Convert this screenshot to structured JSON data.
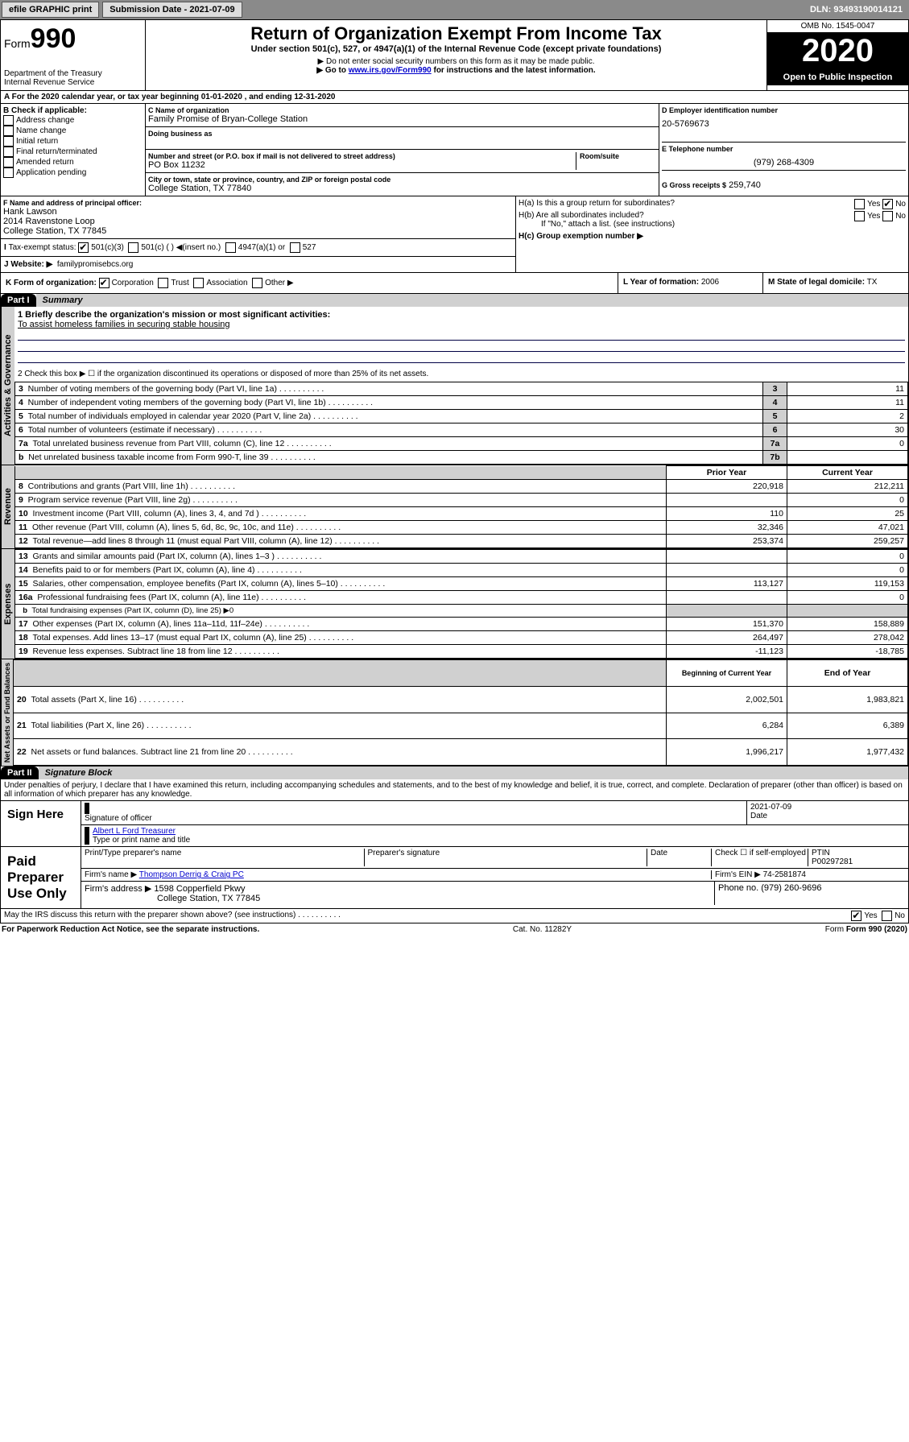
{
  "toolbar": {
    "efile_label": "efile GRAPHIC print",
    "submission_prefix": "Submission Date -",
    "submission_date": "2021-07-09",
    "dln_prefix": "DLN:",
    "dln": "93493190014121"
  },
  "header": {
    "form_prefix": "Form",
    "form_num": "990",
    "dept": "Department of the Treasury",
    "irs": "Internal Revenue Service",
    "title": "Return of Organization Exempt From Income Tax",
    "sub1": "Under section 501(c), 527, or 4947(a)(1) of the Internal Revenue Code (except private foundations)",
    "sub2": "▶ Do not enter social security numbers on this form as it may be made public.",
    "sub3_prefix": "▶ Go to ",
    "sub3_link": "www.irs.gov/Form990",
    "sub3_suffix": " for instructions and the latest information.",
    "omb_label": "OMB No. 1545-0047",
    "year": "2020",
    "open_pub": "Open to Public Inspection"
  },
  "period": "For the 2020 calendar year, or tax year beginning 01-01-2020    , and ending 12-31-2020",
  "boxB": {
    "label": "B Check if applicable:",
    "opts": [
      "Address change",
      "Name change",
      "Initial return",
      "Final return/terminated",
      "Amended return",
      "Application pending"
    ]
  },
  "boxC": {
    "name_label": "C Name of organization",
    "name": "Family Promise of Bryan-College Station",
    "dba_label": "Doing business as",
    "addr_label": "Number and street (or P.O. box if mail is not delivered to street address)",
    "room_label": "Room/suite",
    "addr": "PO Box 11232",
    "city_label": "City or town, state or province, country, and ZIP or foreign postal code",
    "city": "College Station, TX  77840"
  },
  "boxD": {
    "label": "D Employer identification number",
    "ein": "20-5769673"
  },
  "boxE": {
    "label": "E Telephone number",
    "phone": "(979) 268-4309"
  },
  "boxG": {
    "label": "G Gross receipts $",
    "amount": "259,740"
  },
  "boxF": {
    "label": "F  Name and address of principal officer:",
    "name": "Hank Lawson",
    "addr1": "2014 Ravenstone Loop",
    "addr2": "College Station, TX  77845"
  },
  "boxH": {
    "a_label": "H(a)  Is this a group return for subordinates?",
    "b_label": "H(b)  Are all subordinates included?",
    "b_note": "If \"No,\" attach a list. (see instructions)",
    "c_label": "H(c)  Group exemption number ▶",
    "yes": "Yes",
    "no": "No"
  },
  "taxexempt": {
    "label": "Tax-exempt status:",
    "c3": "501(c)(3)",
    "c": "501(c) (  ) ◀(insert no.)",
    "a1": "4947(a)(1) or",
    "527": "527"
  },
  "boxJ": {
    "label": "J  Website: ▶",
    "url": "familypromisebcs.org"
  },
  "boxK": {
    "label": "K Form of organization:",
    "corp": "Corporation",
    "trust": "Trust",
    "assoc": "Association",
    "other": "Other ▶"
  },
  "boxL": {
    "label": "L Year of formation:",
    "val": "2006"
  },
  "boxM": {
    "label": "M State of legal domicile:",
    "val": "TX"
  },
  "part1": {
    "num": "Part I",
    "title": "Summary"
  },
  "summary": {
    "q1_label": "1  Briefly describe the organization's mission or most significant activities:",
    "q1_val": "To assist homeless families in securing stable housing",
    "q2": "2    Check this box ▶ ☐  if the organization discontinued its operations or disposed of more than 25% of its net assets.",
    "lines_gov": [
      {
        "n": "3",
        "t": "Number of voting members of the governing body (Part VI, line 1a)",
        "box": "3",
        "v": "11"
      },
      {
        "n": "4",
        "t": "Number of independent voting members of the governing body (Part VI, line 1b)",
        "box": "4",
        "v": "11"
      },
      {
        "n": "5",
        "t": "Total number of individuals employed in calendar year 2020 (Part V, line 2a)",
        "box": "5",
        "v": "2"
      },
      {
        "n": "6",
        "t": "Total number of volunteers (estimate if necessary)",
        "box": "6",
        "v": "30"
      },
      {
        "n": "7a",
        "t": "Total unrelated business revenue from Part VIII, column (C), line 12",
        "box": "7a",
        "v": "0"
      },
      {
        "n": " b",
        "t": "Net unrelated business taxable income from Form 990-T, line 39",
        "box": "7b",
        "v": ""
      }
    ],
    "col_prior": "Prior Year",
    "col_curr": "Current Year",
    "col_boy": "Beginning of Current Year",
    "col_eoy": "End of Year",
    "rev": [
      {
        "n": "8",
        "t": "Contributions and grants (Part VIII, line 1h)",
        "p": "220,918",
        "c": "212,211"
      },
      {
        "n": "9",
        "t": "Program service revenue (Part VIII, line 2g)",
        "p": "",
        "c": "0"
      },
      {
        "n": "10",
        "t": "Investment income (Part VIII, column (A), lines 3, 4, and 7d )",
        "p": "110",
        "c": "25"
      },
      {
        "n": "11",
        "t": "Other revenue (Part VIII, column (A), lines 5, 6d, 8c, 9c, 10c, and 11e)",
        "p": "32,346",
        "c": "47,021"
      },
      {
        "n": "12",
        "t": "Total revenue—add lines 8 through 11 (must equal Part VIII, column (A), line 12)",
        "p": "253,374",
        "c": "259,257"
      }
    ],
    "exp": [
      {
        "n": "13",
        "t": "Grants and similar amounts paid (Part IX, column (A), lines 1–3 )",
        "p": "",
        "c": "0"
      },
      {
        "n": "14",
        "t": "Benefits paid to or for members (Part IX, column (A), line 4)",
        "p": "",
        "c": "0"
      },
      {
        "n": "15",
        "t": "Salaries, other compensation, employee benefits (Part IX, column (A), lines 5–10)",
        "p": "113,127",
        "c": "119,153"
      },
      {
        "n": "16a",
        "t": "Professional fundraising fees (Part IX, column (A), line 11e)",
        "p": "",
        "c": "0"
      },
      {
        "n": "b",
        "t": "Total fundraising expenses (Part IX, column (D), line 25) ▶0",
        "p": "—",
        "c": "—"
      },
      {
        "n": "17",
        "t": "Other expenses (Part IX, column (A), lines 11a–11d, 11f–24e)",
        "p": "151,370",
        "c": "158,889"
      },
      {
        "n": "18",
        "t": "Total expenses. Add lines 13–17 (must equal Part IX, column (A), line 25)",
        "p": "264,497",
        "c": "278,042"
      },
      {
        "n": "19",
        "t": "Revenue less expenses. Subtract line 18 from line 12",
        "p": "-11,123",
        "c": "-18,785"
      }
    ],
    "net": [
      {
        "n": "20",
        "t": "Total assets (Part X, line 16)",
        "p": "2,002,501",
        "c": "1,983,821"
      },
      {
        "n": "21",
        "t": "Total liabilities (Part X, line 26)",
        "p": "6,284",
        "c": "6,389"
      },
      {
        "n": "22",
        "t": "Net assets or fund balances. Subtract line 21 from line 20",
        "p": "1,996,217",
        "c": "1,977,432"
      }
    ],
    "vtab_gov": "Activities & Governance",
    "vtab_rev": "Revenue",
    "vtab_exp": "Expenses",
    "vtab_net": "Net Assets or Fund Balances"
  },
  "part2": {
    "num": "Part II",
    "title": "Signature Block",
    "perjury": "Under penalties of perjury, I declare that I have examined this return, including accompanying schedules and statements, and to the best of my knowledge and belief, it is true, correct, and complete. Declaration of preparer (other than officer) is based on all information of which preparer has any knowledge.",
    "sign_here": "Sign Here",
    "sig_officer": "Signature of officer",
    "sig_date_label": "Date",
    "sig_date": "2021-07-09",
    "officer_name": "Albert L Ford  Treasurer",
    "type_name": "Type or print name and title",
    "paid": "Paid Preparer Use Only",
    "prep_name_label": "Print/Type preparer's name",
    "prep_sig_label": "Preparer's signature",
    "date_label": "Date",
    "self_emp": "Check ☐ if self-employed",
    "ptin_label": "PTIN",
    "ptin": "P00297281",
    "firm_name_label": "Firm's name    ▶",
    "firm_name": "Thompson Derrig & Craig PC",
    "firm_ein_label": "Firm's EIN ▶",
    "firm_ein": "74-2581874",
    "firm_addr_label": "Firm's address ▶",
    "firm_addr1": "1598 Copperfield Pkwy",
    "firm_addr2": "College Station, TX  77845",
    "phone_label": "Phone no.",
    "phone": "(979) 260-9696",
    "discuss": "May the IRS discuss this return with the preparer shown above? (see instructions)",
    "yes": "Yes",
    "no": "No"
  },
  "footer": {
    "pra": "For Paperwork Reduction Act Notice, see the separate instructions.",
    "cat": "Cat. No. 11282Y",
    "form": "Form 990 (2020)"
  },
  "colors": {
    "toolbar_bg": "#8a8a8a",
    "gray_bg": "#d0d0d0",
    "link": "#0000cc"
  }
}
